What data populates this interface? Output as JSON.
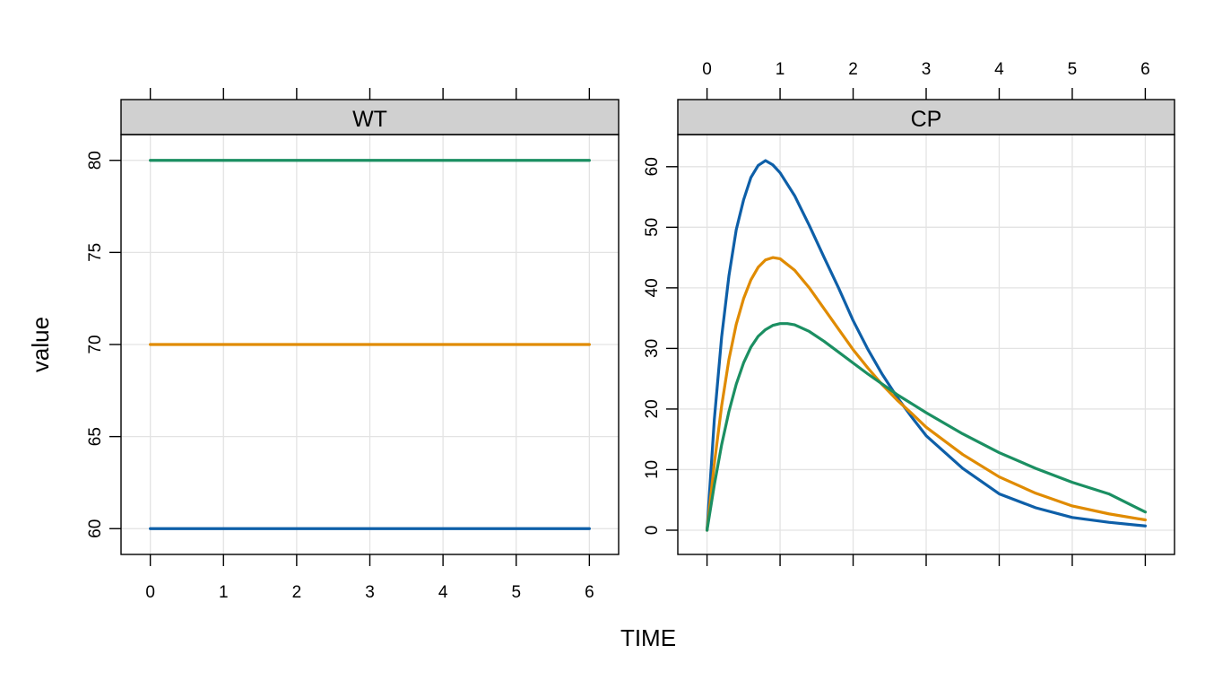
{
  "chart_data": {
    "type": "line",
    "xlabel": "TIME",
    "ylabel": "value",
    "panels": [
      {
        "strip": "WT",
        "xlim": [
          -0.4,
          6.4
        ],
        "ylim": [
          58.6,
          81.4
        ],
        "x_ticks": [
          0,
          1,
          2,
          3,
          4,
          5,
          6
        ],
        "y_ticks": [
          60,
          65,
          70,
          75,
          80
        ],
        "grid": true,
        "series": [
          {
            "color": "#0E5FA8",
            "x": [
              0,
              6
            ],
            "y": [
              60,
              60
            ]
          },
          {
            "color": "#E08B00",
            "x": [
              0,
              6
            ],
            "y": [
              70,
              70
            ]
          },
          {
            "color": "#1B8F62",
            "x": [
              0,
              6
            ],
            "y": [
              80,
              80
            ]
          }
        ]
      },
      {
        "strip": "CP",
        "xlim": [
          -0.4,
          6.4
        ],
        "ylim": [
          -4,
          65.3
        ],
        "x_ticks": [
          0,
          1,
          2,
          3,
          4,
          5,
          6
        ],
        "y_ticks": [
          0,
          10,
          20,
          30,
          40,
          50,
          60
        ],
        "grid": true,
        "series": [
          {
            "color": "#0E5FA8",
            "x": [
              0,
              0.1,
              0.2,
              0.3,
              0.4,
              0.5,
              0.6,
              0.7,
              0.8,
              0.9,
              1.0,
              1.2,
              1.4,
              1.6,
              1.8,
              2.0,
              2.2,
              2.4,
              2.6,
              2.8,
              3.0,
              3.5,
              4.0,
              4.5,
              5.0,
              5.5,
              6.0
            ],
            "y": [
              0,
              18.3,
              31.9,
              42.0,
              49.6,
              54.5,
              58.2,
              60.2,
              61.0,
              60.3,
              59.0,
              55.2,
              50.3,
              45.1,
              40.0,
              34.6,
              29.9,
              25.7,
              22.0,
              18.7,
              15.6,
              10.2,
              6.0,
              3.7,
              2.1,
              1.3,
              0.7
            ]
          },
          {
            "color": "#E08B00",
            "x": [
              0,
              0.1,
              0.2,
              0.3,
              0.4,
              0.5,
              0.6,
              0.7,
              0.8,
              0.9,
              1.0,
              1.2,
              1.4,
              1.6,
              1.8,
              2.0,
              2.2,
              2.4,
              2.6,
              2.8,
              3.0,
              3.5,
              4.0,
              4.5,
              5.0,
              5.5,
              6.0
            ],
            "y": [
              0,
              11.0,
              20.5,
              28.2,
              34.0,
              38.2,
              41.3,
              43.4,
              44.6,
              45.0,
              44.8,
              42.9,
              40.0,
              36.6,
              33.2,
              29.8,
              26.8,
              24.0,
              21.5,
              19.3,
              17.0,
              12.5,
              8.8,
              6.1,
              4.0,
              2.7,
              1.7
            ]
          },
          {
            "color": "#1B8F62",
            "x": [
              0,
              0.1,
              0.2,
              0.3,
              0.4,
              0.5,
              0.6,
              0.7,
              0.8,
              0.9,
              1.0,
              1.1,
              1.2,
              1.4,
              1.6,
              1.8,
              2.0,
              2.2,
              2.4,
              2.6,
              2.8,
              3.0,
              3.5,
              4.0,
              4.5,
              5.0,
              5.5,
              6.0
            ],
            "y": [
              0,
              7.5,
              14.1,
              19.6,
              24.1,
              27.6,
              30.2,
              32.0,
              33.1,
              33.8,
              34.1,
              34.1,
              33.9,
              32.8,
              31.2,
              29.4,
              27.6,
              25.8,
              24.1,
              22.4,
              20.9,
              19.4,
              15.9,
              12.8,
              10.2,
              7.9,
              6.0,
              3.0
            ]
          }
        ]
      }
    ]
  }
}
